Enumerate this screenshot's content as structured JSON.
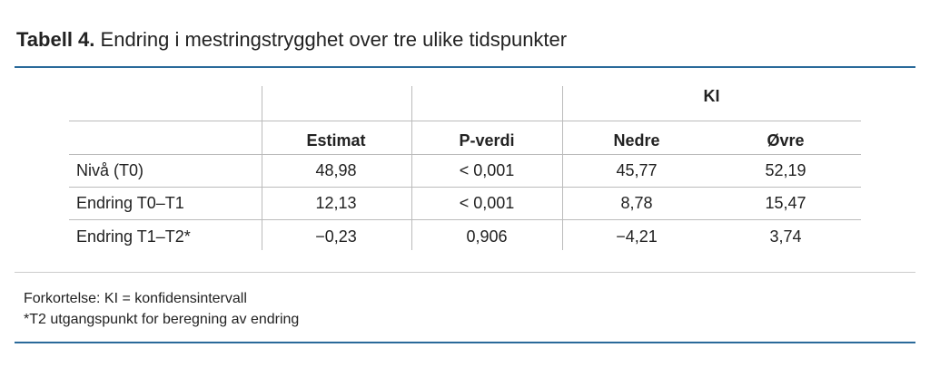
{
  "title": {
    "label": "Tabell 4.",
    "text": "Endring i mestringstrygghet over tre ulike tidspunkter"
  },
  "table": {
    "group_header": "KI",
    "columns": [
      "Estimat",
      "P-verdi",
      "Nedre",
      "Øvre"
    ],
    "rows": [
      [
        "Nivå (T0)",
        "48,98",
        "< 0,001",
        "45,77",
        "52,19"
      ],
      [
        "Endring T0–T1",
        "12,13",
        "< 0,001",
        "8,78",
        "15,47"
      ],
      [
        "Endring T1–T2*",
        "−0,23",
        "0,906",
        "−4,21",
        "3,74"
      ]
    ]
  },
  "footnotes": [
    "Forkortelse: KI = konfidensintervall",
    "*T2 utgangspunkt for beregning av endring"
  ]
}
